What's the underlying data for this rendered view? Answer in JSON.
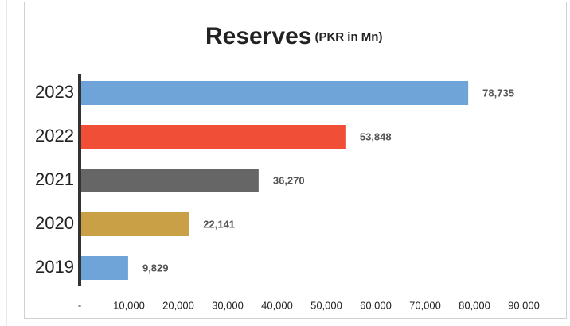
{
  "chart_data": {
    "type": "barh",
    "title": "Reserves",
    "subtitle": "(PKR in Mn)",
    "categories": [
      "2023",
      "2022",
      "2021",
      "2020",
      "2019"
    ],
    "values": [
      78735,
      53848,
      36270,
      22141,
      9829
    ],
    "value_labels": [
      "78,735",
      "53,848",
      "36,270",
      "22,141",
      "9,829"
    ],
    "colors": [
      "#6fa4d9",
      "#f04e37",
      "#666666",
      "#c9a045",
      "#6fa4d9"
    ],
    "xlim": [
      0,
      90000
    ],
    "xticks": [
      {
        "value": 0,
        "label": "-"
      },
      {
        "value": 10000,
        "label": "10,000"
      },
      {
        "value": 20000,
        "label": "20,000"
      },
      {
        "value": 30000,
        "label": "30,000"
      },
      {
        "value": 40000,
        "label": "40,000"
      },
      {
        "value": 50000,
        "label": "50,000"
      },
      {
        "value": 60000,
        "label": "60,000"
      },
      {
        "value": 70000,
        "label": "70,000"
      },
      {
        "value": 80000,
        "label": "80,000"
      },
      {
        "value": 90000,
        "label": "90,000"
      }
    ],
    "grid": false
  }
}
